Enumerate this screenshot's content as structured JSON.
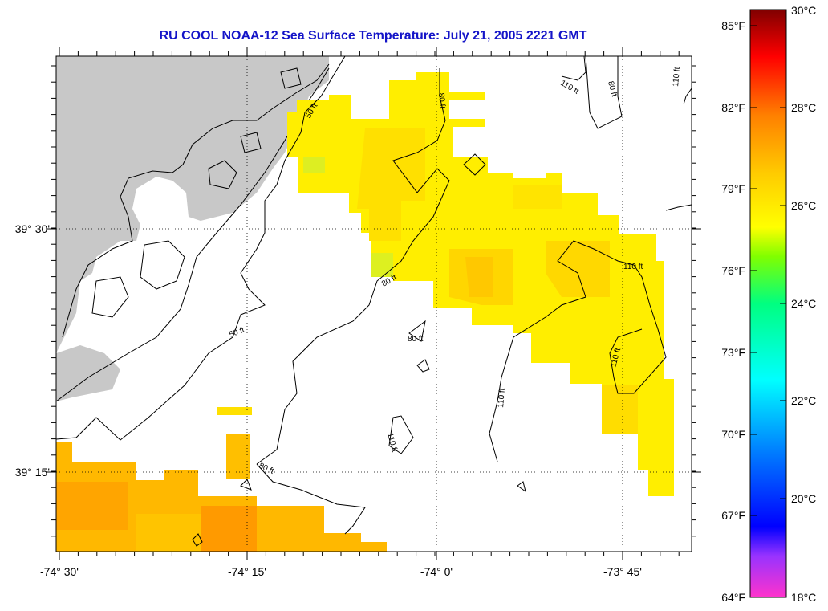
{
  "title": "RU COOL  NOAA-12  Sea Surface Temperature:  July 21, 2005 2221 GMT",
  "axes": {
    "lon_labels": [
      "-74° 30'",
      "-74° 15'",
      "-74° 0'",
      "-73° 45'"
    ],
    "lat_labels": [
      "39° 30'",
      "39° 15'"
    ]
  },
  "contours": {
    "labels": [
      "50 ft",
      "50 ft",
      "80 ft",
      "80 ft",
      "80 ft",
      "80 ft",
      "80 ft",
      "110 ft",
      "110 ft",
      "110 ft",
      "110 ft",
      "110 ft",
      "110 ft"
    ]
  },
  "colorbar": {
    "fahrenheit": [
      "85°F",
      "82°F",
      "79°F",
      "76°F",
      "73°F",
      "70°F",
      "67°F",
      "64°F"
    ],
    "celsius": [
      "30°C",
      "28°C",
      "26°C",
      "24°C",
      "22°C",
      "20°C",
      "18°C"
    ],
    "stops": [
      "#ff33cc",
      "#9933ff",
      "#0000ff",
      "#0080ff",
      "#00ffff",
      "#00ff80",
      "#80ff00",
      "#ffff00",
      "#ffcc00",
      "#ff8000",
      "#ff0000",
      "#800000"
    ]
  },
  "colors": {
    "land": "#c8c8c8",
    "sst_warm": "#ffaa00",
    "sst_mid": "#ffdd00",
    "sst_yellow": "#ffff00",
    "title": "#1414c8"
  }
}
